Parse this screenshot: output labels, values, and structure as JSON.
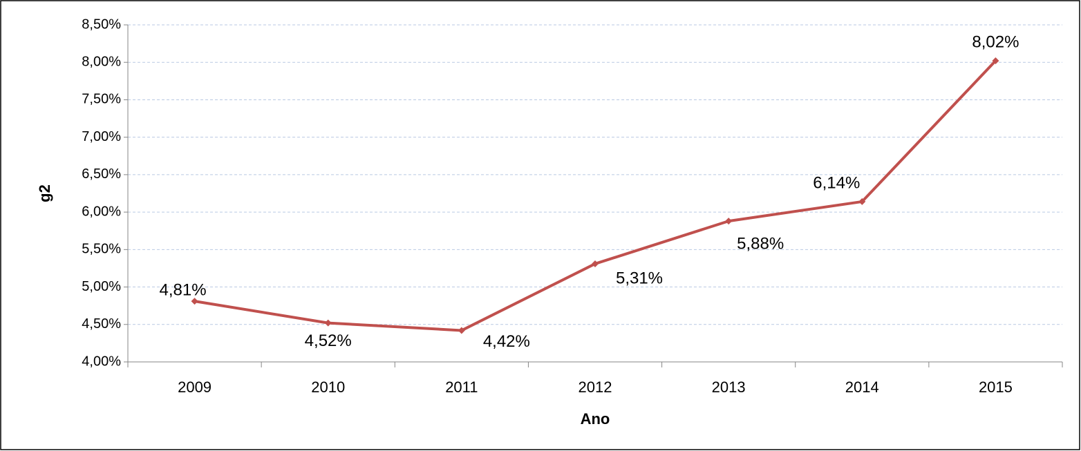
{
  "chart_data": {
    "type": "line",
    "x_label": "Ano",
    "y_label": "g2",
    "categories": [
      "2009",
      "2010",
      "2011",
      "2012",
      "2013",
      "2014",
      "2015"
    ],
    "series": [
      {
        "name": "g2",
        "color": "#c0504d",
        "values": [
          4.81,
          4.52,
          4.42,
          5.31,
          5.88,
          6.14,
          8.02
        ],
        "value_labels": [
          "4,81%",
          "4,52%",
          "4,42%",
          "5,31%",
          "5,88%",
          "6,14%",
          "8,02%"
        ]
      }
    ],
    "ylim": [
      4.0,
      8.5
    ],
    "yticks": [
      {
        "value": 4.0,
        "label": "4,00%"
      },
      {
        "value": 4.5,
        "label": "4,50%"
      },
      {
        "value": 5.0,
        "label": "5,00%"
      },
      {
        "value": 5.5,
        "label": "5,50%"
      },
      {
        "value": 6.0,
        "label": "6,00%"
      },
      {
        "value": 6.5,
        "label": "6,50%"
      },
      {
        "value": 7.0,
        "label": "7,00%"
      },
      {
        "value": 7.5,
        "label": "7,50%"
      },
      {
        "value": 8.0,
        "label": "8,00%"
      },
      {
        "value": 8.5,
        "label": "8,50%"
      }
    ],
    "grid": true
  }
}
